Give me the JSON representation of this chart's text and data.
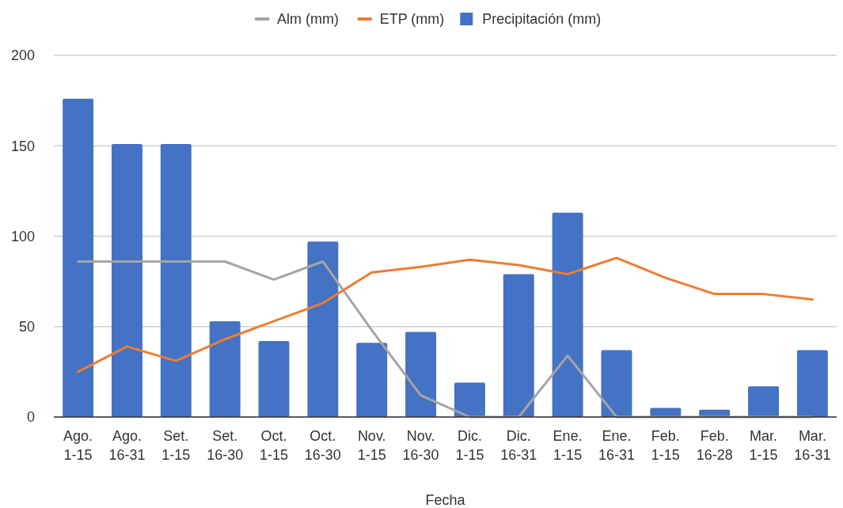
{
  "chart_data": {
    "type": "bar",
    "xlabel": "Fecha",
    "categories": [
      "Ago.\n1-15",
      "Ago.\n16-31",
      "Set.\n1-15",
      "Set.\n16-30",
      "Oct.\n1-15",
      "Oct.\n16-30",
      "Nov.\n1-15",
      "Nov.\n16-30",
      "Dic.\n1-15",
      "Dic.\n16-31",
      "Ene.\n1-15",
      "Ene.\n16-31",
      "Feb.\n1-15",
      "Feb.\n16-28",
      "Mar.\n1-15",
      "Mar.\n16-31"
    ],
    "series": [
      {
        "name": "Alm (mm)",
        "type": "line",
        "color": "#a5a5a5",
        "values": [
          86,
          86,
          86,
          86,
          76,
          86,
          48,
          12,
          0,
          0,
          34,
          0,
          0,
          0,
          0,
          0
        ]
      },
      {
        "name": "ETP (mm)",
        "type": "line",
        "color": "#ed7d31",
        "values": [
          25,
          39,
          31,
          43,
          53,
          63,
          80,
          83,
          87,
          84,
          79,
          88,
          77,
          68,
          68,
          65
        ]
      },
      {
        "name": "Precipitación (mm)",
        "color": "#4472c4",
        "values": [
          176,
          151,
          151,
          53,
          42,
          97,
          41,
          47,
          19,
          79,
          113,
          37,
          5,
          4,
          17,
          37
        ]
      }
    ],
    "ylim": [
      0,
      200
    ],
    "yticks": [
      0,
      50,
      100,
      150,
      200
    ],
    "grid": "y",
    "legend": "top"
  }
}
